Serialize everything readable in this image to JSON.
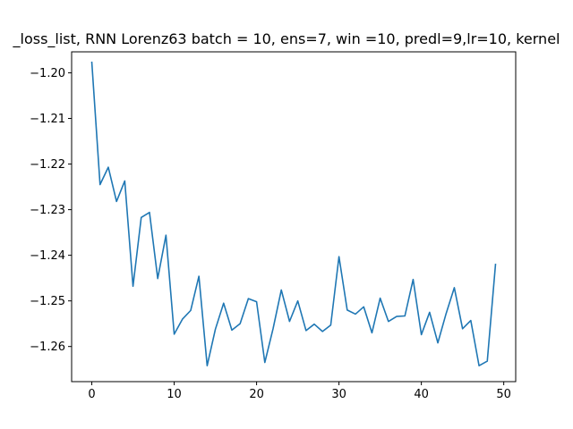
{
  "chart_data": {
    "type": "line",
    "title": "_loss_list, RNN Lorenz63 batch = 10, ens=7, win =10, predl=9,lr=10, kernel",
    "xlabel": "",
    "ylabel": "",
    "xlim": [
      -2.45,
      51.45
    ],
    "ylim": [
      -1.2677,
      -1.1954
    ],
    "xticks": [
      0,
      10,
      20,
      30,
      40,
      50
    ],
    "xtick_labels": [
      "0",
      "10",
      "20",
      "30",
      "40",
      "50"
    ],
    "yticks": [
      -1.2,
      -1.21,
      -1.22,
      -1.23,
      -1.24,
      -1.25,
      -1.26
    ],
    "ytick_labels": [
      "−1.20",
      "−1.21",
      "−1.22",
      "−1.23",
      "−1.24",
      "−1.25",
      "−1.26"
    ],
    "grid": false,
    "series": [
      {
        "color": "#1f77b4",
        "x": [
          0,
          1,
          2,
          3,
          4,
          5,
          6,
          7,
          8,
          9,
          10,
          11,
          12,
          13,
          14,
          15,
          16,
          17,
          18,
          19,
          20,
          21,
          22,
          23,
          24,
          25,
          26,
          27,
          28,
          29,
          30,
          31,
          32,
          33,
          34,
          35,
          36,
          37,
          38,
          39,
          40,
          41,
          42,
          43,
          44,
          45,
          46,
          47,
          48,
          49
        ],
        "y": [
          -1.1977,
          -1.2245,
          -1.2207,
          -1.2282,
          -1.2237,
          -1.2468,
          -1.2317,
          -1.2306,
          -1.2451,
          -1.2356,
          -1.2573,
          -1.254,
          -1.2521,
          -1.2446,
          -1.2642,
          -1.2562,
          -1.2505,
          -1.2564,
          -1.255,
          -1.2495,
          -1.2502,
          -1.2635,
          -1.2561,
          -1.2476,
          -1.2545,
          -1.25,
          -1.2565,
          -1.2551,
          -1.2567,
          -1.2553,
          -1.2403,
          -1.252,
          -1.2529,
          -1.2513,
          -1.257,
          -1.2494,
          -1.2545,
          -1.2534,
          -1.2533,
          -1.2453,
          -1.2574,
          -1.2525,
          -1.2592,
          -1.2528,
          -1.2471,
          -1.2561,
          -1.2543,
          -1.2642,
          -1.2632,
          -1.242
        ]
      }
    ]
  }
}
